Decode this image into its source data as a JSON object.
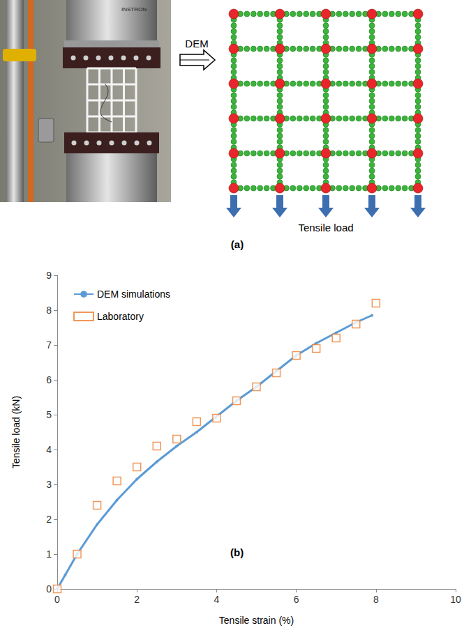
{
  "panel_a": {
    "label": "(a)",
    "arrow_label": "DEM",
    "load_label": "Tensile load",
    "machine_label": "INSTRON"
  },
  "chart_data": {
    "type": "line",
    "x_label": "Tensile strain (%)",
    "y_label": "Tensile load (kN)",
    "annotations": [
      "(b)"
    ],
    "series": [
      {
        "name": "DEM simulations",
        "type": "line",
        "color": "#5b9bd5",
        "marker": "circle",
        "line_style": "solid",
        "x": [
          0,
          0.2,
          0.5,
          1,
          1.5,
          2,
          2.5,
          3,
          3.5,
          4,
          4.5,
          5,
          5.5,
          6,
          6.5,
          7,
          7.5,
          7.9
        ],
        "values": [
          0,
          0.4,
          1.0,
          1.85,
          2.55,
          3.15,
          3.65,
          4.1,
          4.5,
          4.95,
          5.4,
          5.8,
          6.25,
          6.7,
          7.05,
          7.35,
          7.65,
          7.85
        ]
      },
      {
        "name": "Laboratory",
        "type": "scatter",
        "color": "#ed7d31",
        "marker": "square",
        "line_style": "none",
        "x": [
          0,
          0.5,
          1,
          1.5,
          2,
          2.5,
          3,
          3.5,
          4,
          4.5,
          5,
          5.5,
          6,
          6.5,
          7,
          7.5,
          8
        ],
        "values": [
          0,
          1.0,
          2.4,
          3.1,
          3.5,
          4.1,
          4.3,
          4.8,
          4.9,
          5.4,
          5.8,
          6.2,
          6.7,
          6.9,
          7.2,
          7.6,
          8.2
        ]
      }
    ],
    "xlim": [
      0,
      10
    ],
    "xticks": [
      0,
      2,
      4,
      6,
      8,
      10
    ],
    "ylim": [
      0,
      9
    ],
    "yticks": [
      0,
      1,
      2,
      3,
      4,
      5,
      6,
      7,
      8,
      9
    ],
    "grid": false,
    "legend": "top-left"
  }
}
